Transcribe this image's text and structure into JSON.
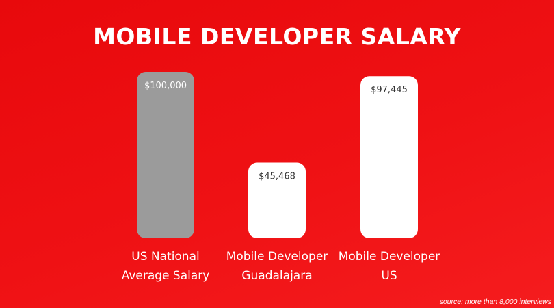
{
  "title": "MOBILE DEVELOPER SALARY",
  "source": "source: more than 8,000 interviews",
  "colors": {
    "background": "#ee1013",
    "bar_highlight": "#9b9b9b",
    "bar_default": "#ffffff",
    "value_on_grey": "#ffffff",
    "value_on_white": "#333333"
  },
  "chart_data": {
    "type": "bar",
    "title": "MOBILE DEVELOPER SALARY",
    "categories": [
      "US National Average Salary",
      "Mobile Developer Guadalajara",
      "Mobile Developer US"
    ],
    "category_lines": [
      [
        "US National",
        "Average Salary"
      ],
      [
        "Mobile Developer",
        "Guadalajara"
      ],
      [
        "Mobile Developer",
        "US"
      ]
    ],
    "values": [
      100000,
      45468,
      97445
    ],
    "value_labels": [
      "$100,000",
      "$45,468",
      "$97,445"
    ],
    "bar_colors": [
      "#9b9b9b",
      "#ffffff",
      "#ffffff"
    ],
    "xlabel": "",
    "ylabel": "",
    "ylim": [
      0,
      100000
    ],
    "grid": false,
    "legend": "none"
  }
}
